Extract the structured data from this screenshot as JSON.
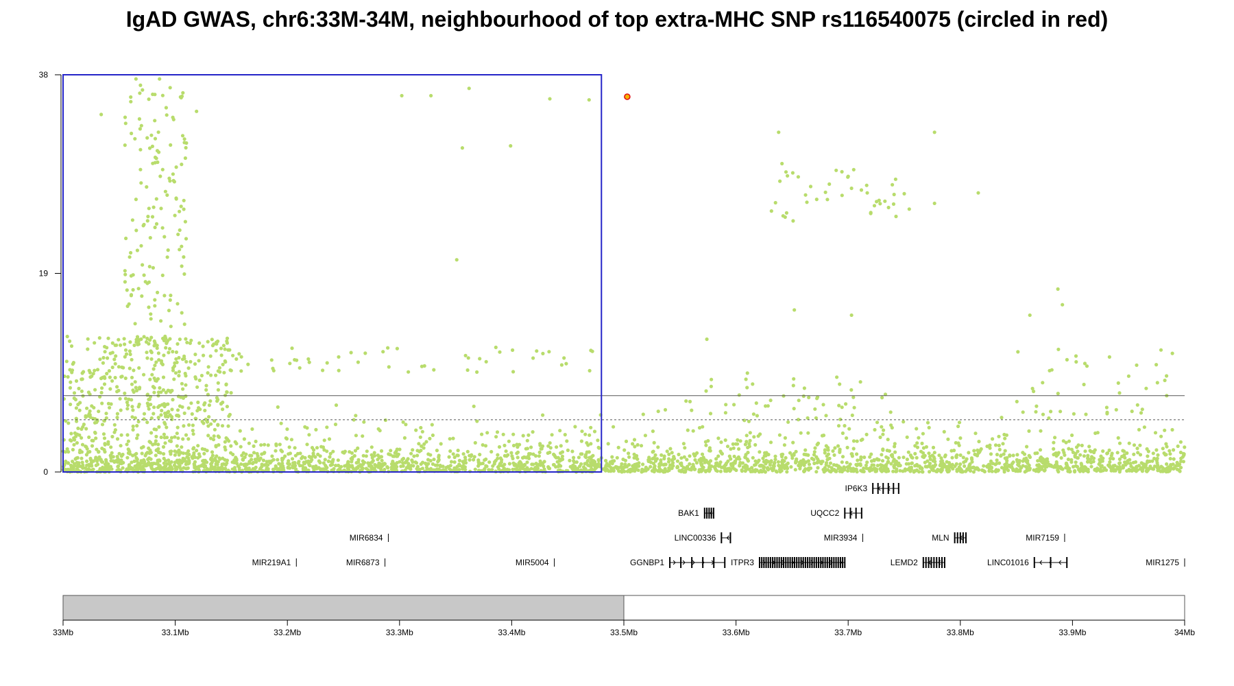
{
  "title": "IgAD GWAS, chr6:33M-34M, neighbourhood of top extra-MHC SNP rs116540075 (circled in red)",
  "colors": {
    "points": "#b8dc6c",
    "highlight_box": "#2323c8",
    "top_snp": "#e01010",
    "region_bar": "#c8c8c8",
    "threshold_line": "#555555"
  },
  "chart_data": {
    "type": "scatter",
    "title": "IgAD GWAS, chr6:33M-34M, neighbourhood of top extra-MHC SNP rs116540075 (circled in red)",
    "xlabel": "",
    "ylabel": "",
    "xlim": [
      33.0,
      34.0
    ],
    "ylim": [
      0,
      38
    ],
    "yticks": [
      "0",
      "19",
      "38"
    ],
    "xticks": [
      "33Mb",
      "33.1Mb",
      "33.2Mb",
      "33.3Mb",
      "33.4Mb",
      "33.5Mb",
      "33.6Mb",
      "33.7Mb",
      "33.8Mb",
      "33.9Mb",
      "34Mb"
    ],
    "threshold_lines": [
      {
        "style": "solid",
        "y": 7.3
      },
      {
        "style": "dashed",
        "y": 5.0
      }
    ],
    "highlight_box": {
      "x0": 33.0,
      "x1": 33.48,
      "y0": 0,
      "y1": 38
    },
    "region_bar": {
      "x0": 33.0,
      "x1": 33.5
    },
    "top_snp": {
      "name": "rs116540075",
      "x": 33.503,
      "y": 35.9
    },
    "notable_points": [
      {
        "x": 33.065,
        "y": 37.6
      },
      {
        "x": 33.069,
        "y": 37.0
      },
      {
        "x": 33.086,
        "y": 37.6
      },
      {
        "x": 33.034,
        "y": 34.2
      },
      {
        "x": 33.119,
        "y": 34.5
      },
      {
        "x": 33.302,
        "y": 36.0
      },
      {
        "x": 33.328,
        "y": 36.0
      },
      {
        "x": 33.362,
        "y": 36.7
      },
      {
        "x": 33.434,
        "y": 35.7
      },
      {
        "x": 33.469,
        "y": 35.6
      },
      {
        "x": 33.356,
        "y": 31.0
      },
      {
        "x": 33.399,
        "y": 31.2
      },
      {
        "x": 33.638,
        "y": 32.5
      },
      {
        "x": 33.777,
        "y": 32.5
      },
      {
        "x": 33.816,
        "y": 26.7
      },
      {
        "x": 33.641,
        "y": 29.5
      },
      {
        "x": 33.662,
        "y": 26.5
      },
      {
        "x": 33.717,
        "y": 26.7
      },
      {
        "x": 33.736,
        "y": 25.3
      },
      {
        "x": 33.777,
        "y": 25.7
      },
      {
        "x": 33.351,
        "y": 20.3
      },
      {
        "x": 33.887,
        "y": 17.5
      },
      {
        "x": 33.891,
        "y": 16.0
      },
      {
        "x": 33.574,
        "y": 12.7
      },
      {
        "x": 33.652,
        "y": 15.5
      },
      {
        "x": 33.703,
        "y": 15.0
      },
      {
        "x": 33.862,
        "y": 15.0
      },
      {
        "x": 33.933,
        "y": 11.0
      },
      {
        "x": 33.984,
        "y": 7.3
      }
    ]
  },
  "genes": [
    {
      "name": "IP6K3",
      "start": 33.722,
      "end": 33.745,
      "row": 0,
      "strand": "-",
      "exons": 6
    },
    {
      "name": "BAK1",
      "start": 33.572,
      "end": 33.58,
      "row": 1,
      "strand": "-",
      "exons": 5
    },
    {
      "name": "UQCC2",
      "start": 33.697,
      "end": 33.712,
      "row": 1,
      "strand": "-",
      "exons": 4
    },
    {
      "name": "MIR6834",
      "start": 33.29,
      "end": 33.29,
      "row": 2,
      "strand": "",
      "exons": 0
    },
    {
      "name": "LINC00336",
      "start": 33.587,
      "end": 33.595,
      "row": 2,
      "strand": "-",
      "exons": 2
    },
    {
      "name": "MIR3934",
      "start": 33.713,
      "end": 33.713,
      "row": 2,
      "strand": "",
      "exons": 0
    },
    {
      "name": "MLN",
      "start": 33.795,
      "end": 33.805,
      "row": 2,
      "strand": "-",
      "exons": 5
    },
    {
      "name": "MIR7159",
      "start": 33.893,
      "end": 33.893,
      "row": 2,
      "strand": "",
      "exons": 0
    },
    {
      "name": "MIR219A1",
      "start": 33.208,
      "end": 33.208,
      "row": 3,
      "strand": "",
      "exons": 0
    },
    {
      "name": "MIR6873",
      "start": 33.287,
      "end": 33.287,
      "row": 3,
      "strand": "",
      "exons": 0
    },
    {
      "name": "MIR5004",
      "start": 33.438,
      "end": 33.438,
      "row": 3,
      "strand": "",
      "exons": 0
    },
    {
      "name": "GGNBP1",
      "start": 33.541,
      "end": 33.59,
      "row": 3,
      "strand": "+",
      "exons": 6
    },
    {
      "name": "ITPR3",
      "start": 33.621,
      "end": 33.697,
      "row": 3,
      "strand": "+",
      "exons": 40
    },
    {
      "name": "LEMD2",
      "start": 33.767,
      "end": 33.786,
      "row": 3,
      "strand": "-",
      "exons": 9
    },
    {
      "name": "LINC01016",
      "start": 33.866,
      "end": 33.895,
      "row": 3,
      "strand": "-",
      "exons": 3
    },
    {
      "name": "MIR1275",
      "start": 34.0,
      "end": 34.0,
      "row": 3,
      "strand": "",
      "exons": 0
    }
  ]
}
